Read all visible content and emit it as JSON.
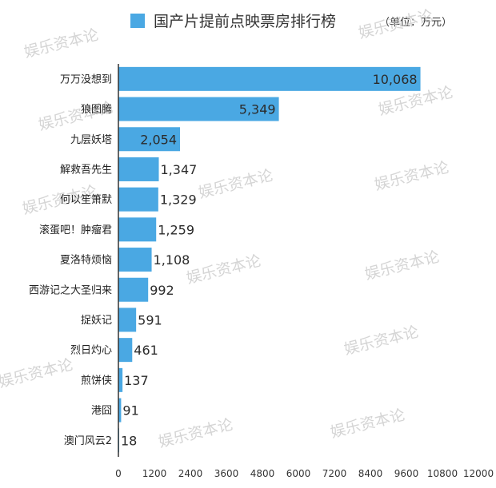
{
  "chart_data": {
    "type": "bar",
    "orientation": "horizontal",
    "title": "国产片提前点映票房排行榜",
    "unit": "（单位：万元）",
    "bar_color": "#4aa8e3",
    "categories": [
      "万万没想到",
      "狼图腾",
      "九层妖塔",
      "解救吾先生",
      "何以笙箫默",
      "滚蛋吧！肿瘤君",
      "夏洛特烦恼",
      "西游记之大圣归来",
      "捉妖记",
      "烈日灼心",
      "煎饼侠",
      "港囧",
      "澳门风云2"
    ],
    "values": [
      10068,
      5349,
      2054,
      1347,
      1329,
      1259,
      1108,
      992,
      591,
      461,
      137,
      91,
      18
    ],
    "value_labels": [
      "10,068",
      "5,349",
      "2,054",
      "1,347",
      "1,329",
      "1,259",
      "1,108",
      "992",
      "591",
      "461",
      "137",
      "91",
      "18"
    ],
    "xlim": [
      0,
      12000
    ],
    "xticks": [
      "0",
      "1200",
      "2400",
      "3600",
      "4800",
      "6000",
      "7200",
      "8400",
      "9600",
      "10800",
      "12000"
    ],
    "grid": false,
    "legend": "top"
  },
  "watermarks": [
    "娱乐资本论",
    "娱乐资本论",
    "娱乐资本论",
    "娱乐资本论",
    "娱乐资本论",
    "娱乐资本论",
    "娱乐资本论",
    "娱乐资本论",
    "娱乐资本论",
    "娱乐资本论",
    "娱乐资本论",
    "娱乐资本论",
    "娱乐资本论"
  ]
}
